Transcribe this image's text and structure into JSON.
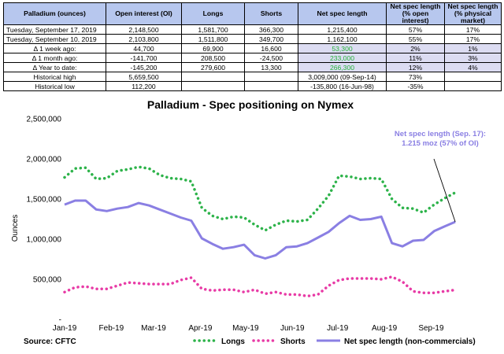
{
  "table": {
    "headers": [
      "Palladium (ounces)",
      "Open interest (OI)",
      "Longs",
      "Shorts",
      "Net spec length",
      "Net spec length (% open interest)",
      "Net spec length (% physical market)"
    ],
    "rows": [
      {
        "label": "Tuesday, September 17, 2019",
        "oi": "2,148,500",
        "longs": "1,581,700",
        "shorts": "366,300",
        "net": "1,215,400",
        "pct_oi": "57%",
        "pct_phys": "17%"
      },
      {
        "label": "Tuesday, September 10, 2019",
        "oi": "2,103,800",
        "longs": "1,511,800",
        "shorts": "349,700",
        "net": "1,162,100",
        "pct_oi": "55%",
        "pct_phys": "17%"
      },
      {
        "label": "Δ 1 week ago:",
        "oi": "44,700",
        "longs": "69,900",
        "shorts": "16,600",
        "net": "53,300",
        "pct_oi": "2%",
        "pct_phys": "1%"
      },
      {
        "label": "Δ 1 month ago:",
        "oi": "-141,700",
        "longs": "208,500",
        "shorts": "-24,500",
        "net": "233,000",
        "pct_oi": "11%",
        "pct_phys": "3%"
      },
      {
        "label": "Δ Year to date:",
        "oi": "-145,200",
        "longs": "279,600",
        "shorts": "13,300",
        "net": "266,300",
        "pct_oi": "12%",
        "pct_phys": "4%"
      },
      {
        "label": "Historical high",
        "oi": "5,659,500",
        "longs": "",
        "shorts": "",
        "net": "3,009,000 (09-Sep-14)",
        "pct_oi": "73%",
        "pct_phys": ""
      },
      {
        "label": "Historical low",
        "oi": "112,200",
        "longs": "",
        "shorts": "",
        "net": "-135,800 (16-Jun-98)",
        "pct_oi": "-35%",
        "pct_phys": ""
      }
    ]
  },
  "chart_data": {
    "type": "line",
    "title": "Palladium - Spec positioning on Nymex",
    "ylabel": "Ounces",
    "ylim": [
      0,
      2500000
    ],
    "yticks": [
      "-",
      "500,000",
      "1,000,000",
      "1,500,000",
      "2,000,000",
      "2,500,000"
    ],
    "xticks": [
      "Jan-19",
      "Feb-19",
      "Mar-19",
      "Apr-19",
      "May-19",
      "Jun-19",
      "Jul-19",
      "Aug-19",
      "Sep-19"
    ],
    "x": [
      "2019-01-01",
      "2019-01-08",
      "2019-01-15",
      "2019-01-22",
      "2019-01-29",
      "2019-02-05",
      "2019-02-12",
      "2019-02-19",
      "2019-02-26",
      "2019-03-05",
      "2019-03-12",
      "2019-03-19",
      "2019-03-26",
      "2019-04-02",
      "2019-04-09",
      "2019-04-16",
      "2019-04-23",
      "2019-04-30",
      "2019-05-07",
      "2019-05-14",
      "2019-05-21",
      "2019-05-28",
      "2019-06-04",
      "2019-06-11",
      "2019-06-18",
      "2019-06-25",
      "2019-07-02",
      "2019-07-09",
      "2019-07-16",
      "2019-07-23",
      "2019-07-30",
      "2019-08-06",
      "2019-08-13",
      "2019-08-20",
      "2019-08-27",
      "2019-09-03",
      "2019-09-10",
      "2019-09-17"
    ],
    "series": [
      {
        "name": "Longs",
        "color": "#2db34a",
        "style": "dotted",
        "values": [
          1770000,
          1880000,
          1890000,
          1750000,
          1760000,
          1850000,
          1870000,
          1900000,
          1880000,
          1800000,
          1760000,
          1750000,
          1720000,
          1390000,
          1290000,
          1250000,
          1280000,
          1270000,
          1180000,
          1110000,
          1180000,
          1230000,
          1220000,
          1240000,
          1380000,
          1540000,
          1790000,
          1780000,
          1750000,
          1760000,
          1750000,
          1500000,
          1390000,
          1380000,
          1330000,
          1430000,
          1510000,
          1580000
        ]
      },
      {
        "name": "Shorts",
        "color": "#e83ba6",
        "style": "dotted",
        "values": [
          340000,
          400000,
          410000,
          380000,
          380000,
          420000,
          460000,
          450000,
          440000,
          440000,
          440000,
          490000,
          520000,
          380000,
          360000,
          370000,
          370000,
          340000,
          370000,
          320000,
          340000,
          310000,
          310000,
          290000,
          310000,
          420000,
          490000,
          510000,
          510000,
          510000,
          500000,
          530000,
          470000,
          350000,
          330000,
          330000,
          350000,
          366300
        ]
      },
      {
        "name": "Net spec length (non-commercials)",
        "color": "#8a7fe3",
        "style": "solid",
        "values": [
          1430000,
          1480000,
          1480000,
          1370000,
          1350000,
          1380000,
          1400000,
          1450000,
          1420000,
          1370000,
          1320000,
          1270000,
          1230000,
          1010000,
          940000,
          880000,
          900000,
          930000,
          800000,
          760000,
          800000,
          900000,
          910000,
          950000,
          1020000,
          1090000,
          1200000,
          1290000,
          1240000,
          1250000,
          1280000,
          950000,
          910000,
          980000,
          990000,
          1100000,
          1160000,
          1215400
        ]
      }
    ],
    "annotation": {
      "lines": [
        "Net spec length (Sep. 17):",
        "1.215 moz (57% of OI)"
      ]
    },
    "source": "Source: CFTC",
    "legend_position": "bottom",
    "grid": false
  }
}
